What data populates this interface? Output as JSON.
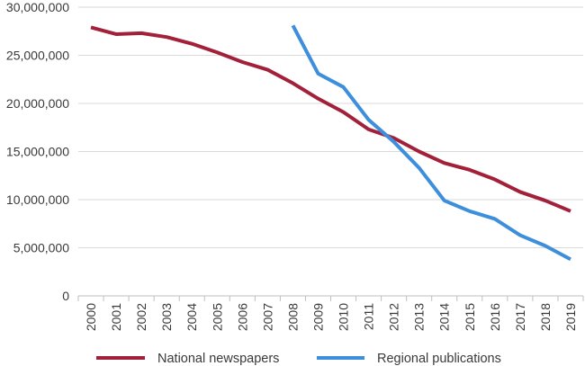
{
  "chart_data": {
    "type": "line",
    "title": "",
    "xlabel": "",
    "ylabel": "",
    "categories": [
      "2000",
      "2001",
      "2002",
      "2003",
      "2004",
      "2005",
      "2006",
      "2007",
      "2008",
      "2009",
      "2010",
      "2011",
      "2012",
      "2013",
      "2014",
      "2015",
      "2016",
      "2017",
      "2018",
      "2019"
    ],
    "ylim": [
      0,
      30000000
    ],
    "y_ticks": [
      "0",
      "5,000,000",
      "10,000,000",
      "15,000,000",
      "20,000,000",
      "25,000,000",
      "30,000,000"
    ],
    "y_tick_values": [
      0,
      5000000,
      10000000,
      15000000,
      20000000,
      25000000,
      30000000
    ],
    "legend_position": "bottom",
    "gridlines": "horizontal",
    "series": [
      {
        "name": "National newspapers",
        "color": "#a3203a",
        "values": [
          27900000,
          27200000,
          27300000,
          26900000,
          26200000,
          25300000,
          24300000,
          23500000,
          22100000,
          20500000,
          19100000,
          17300000,
          16400000,
          15000000,
          13800000,
          13100000,
          12100000,
          10800000,
          9900000,
          8800000
        ]
      },
      {
        "name": "Regional publications",
        "color": "#3d8fdc",
        "values": [
          null,
          null,
          null,
          null,
          null,
          null,
          null,
          null,
          28100000,
          23100000,
          21700000,
          18300000,
          16000000,
          13300000,
          9900000,
          8800000,
          8000000,
          6300000,
          5200000,
          3800000
        ]
      }
    ]
  }
}
